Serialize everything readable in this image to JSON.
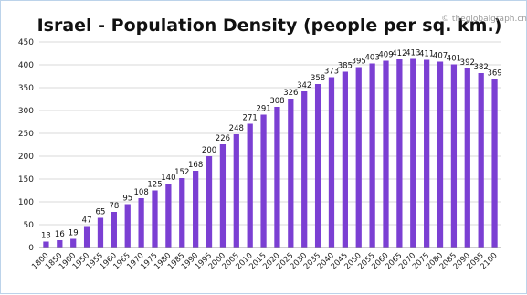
{
  "chart_data": {
    "type": "bar",
    "title": "Israel - Population Density (people per sq. km.)",
    "watermark": "© theglobalgraph.cn",
    "xlabel": "",
    "ylabel": "",
    "ylim": [
      0,
      450
    ],
    "yticks": [
      0,
      50,
      100,
      150,
      200,
      250,
      300,
      350,
      400,
      450
    ],
    "grid": true,
    "legend": "none",
    "bar_color": "#7b3fd3",
    "categories": [
      "1800",
      "1850",
      "1900",
      "1950",
      "1955",
      "1960",
      "1965",
      "1970",
      "1975",
      "1980",
      "1985",
      "1990",
      "1995",
      "2000",
      "2005",
      "2010",
      "2015",
      "2020",
      "2025",
      "2030",
      "2035",
      "2040",
      "2045",
      "2050",
      "2055",
      "2060",
      "2065",
      "2070",
      "2075",
      "2080",
      "2085",
      "2090",
      "2095",
      "2100"
    ],
    "values": [
      13,
      16,
      19,
      47,
      65,
      78,
      95,
      108,
      125,
      140,
      152,
      168,
      200,
      226,
      248,
      271,
      291,
      308,
      326,
      342,
      358,
      373,
      385,
      395,
      403,
      409,
      412,
      413,
      411,
      407,
      401,
      392,
      382,
      369
    ]
  }
}
